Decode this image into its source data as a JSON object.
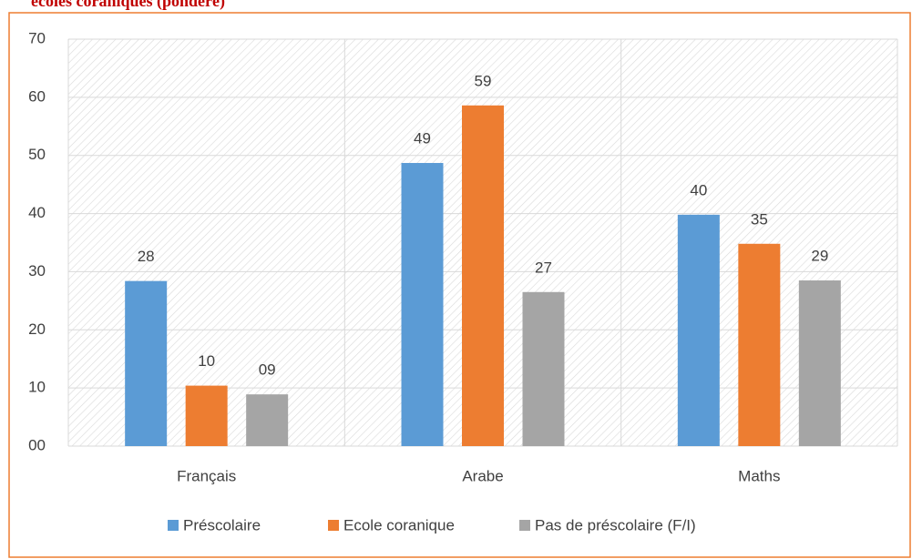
{
  "chart_data": {
    "type": "bar",
    "title": "écoles coraniques (pondéré)",
    "categories": [
      "Français",
      "Arabe",
      "Maths"
    ],
    "series": [
      {
        "name": "Préscolaire",
        "color": "#5b9bd5",
        "values": [
          28.4,
          48.7,
          39.8
        ],
        "value_labels": [
          "28",
          "49",
          "40"
        ]
      },
      {
        "name": "Ecole coranique",
        "color": "#ed7d31",
        "values": [
          10.4,
          58.6,
          34.8
        ],
        "value_labels": [
          "10",
          "59",
          "35"
        ]
      },
      {
        "name": "Pas de préscolaire (F/I)",
        "color": "#a5a5a5",
        "values": [
          8.9,
          26.5,
          28.5
        ],
        "value_labels": [
          "09",
          "27",
          "29"
        ]
      }
    ],
    "ylim": [
      0,
      70
    ],
    "yticks": [
      {
        "value": 0,
        "label": "00"
      },
      10,
      20,
      30,
      40,
      50,
      60,
      70
    ],
    "grid": true,
    "legend": "bottom"
  }
}
